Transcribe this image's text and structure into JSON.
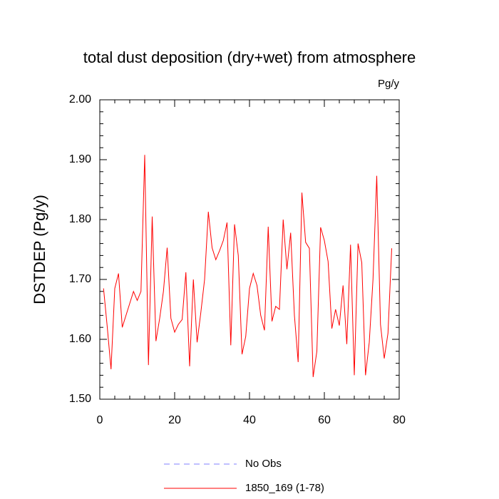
{
  "chart_data": {
    "type": "line",
    "title": "total dust deposition (dry+wet) from atmosphere",
    "units_label": "Pg/y",
    "y_label": "DSTDEP  (Pg/y)",
    "x": [
      1,
      2,
      3,
      4,
      5,
      6,
      7,
      8,
      9,
      10,
      11,
      12,
      13,
      14,
      15,
      16,
      17,
      18,
      19,
      20,
      21,
      22,
      23,
      24,
      25,
      26,
      27,
      28,
      29,
      30,
      31,
      32,
      33,
      34,
      35,
      36,
      37,
      38,
      39,
      40,
      41,
      42,
      43,
      44,
      45,
      46,
      47,
      48,
      49,
      50,
      51,
      52,
      53,
      54,
      55,
      56,
      57,
      58,
      59,
      60,
      61,
      62,
      63,
      64,
      65,
      66,
      67,
      68,
      69,
      70,
      71,
      72,
      73,
      74,
      75,
      76,
      77,
      78
    ],
    "series": [
      {
        "name": "No Obs",
        "color": "#7f7fff",
        "dash": true,
        "values": [
          null,
          null,
          null,
          null,
          null,
          null,
          null,
          null,
          null,
          null,
          null,
          null,
          null,
          null,
          null,
          null,
          null,
          null,
          null,
          null,
          null,
          null,
          null,
          null,
          null,
          null,
          null,
          null,
          null,
          null,
          null,
          null,
          null,
          null,
          null,
          null,
          null,
          null,
          null,
          null,
          null,
          null,
          null,
          null,
          null,
          null,
          null,
          null,
          null,
          null,
          null,
          null,
          null,
          null,
          null,
          null,
          null,
          null,
          null,
          null,
          null,
          null,
          null,
          null,
          null,
          null,
          null,
          null,
          null,
          null,
          null,
          null,
          null,
          null,
          null,
          null,
          null,
          null
        ]
      },
      {
        "name": "1850_169 (1-78)",
        "color": "#ff0000",
        "dash": false,
        "values": [
          1.685,
          1.62,
          1.55,
          1.685,
          1.71,
          1.62,
          1.64,
          1.66,
          1.68,
          1.665,
          1.68,
          1.908,
          1.557,
          1.805,
          1.597,
          1.635,
          1.68,
          1.753,
          1.635,
          1.612,
          1.625,
          1.633,
          1.712,
          1.555,
          1.7,
          1.595,
          1.645,
          1.7,
          1.813,
          1.753,
          1.733,
          1.748,
          1.765,
          1.795,
          1.59,
          1.792,
          1.74,
          1.575,
          1.605,
          1.685,
          1.71,
          1.69,
          1.64,
          1.615,
          1.788,
          1.63,
          1.655,
          1.65,
          1.8,
          1.717,
          1.778,
          1.64,
          1.562,
          1.845,
          1.762,
          1.752,
          1.537,
          1.58,
          1.787,
          1.765,
          1.73,
          1.618,
          1.65,
          1.623,
          1.69,
          1.592,
          1.758,
          1.54,
          1.76,
          1.728,
          1.54,
          1.595,
          1.7,
          1.873,
          1.625,
          1.568,
          1.61,
          1.752
        ]
      }
    ],
    "xlim": [
      0,
      80
    ],
    "xticks": [
      0,
      20,
      40,
      60,
      80
    ],
    "ylim": [
      1.5,
      2.0
    ],
    "yticks": [
      {
        "value": 1.5,
        "label": "1.50"
      },
      {
        "value": 1.6,
        "label": "1.60"
      },
      {
        "value": 1.7,
        "label": "1.70"
      },
      {
        "value": 1.8,
        "label": "1.80"
      },
      {
        "value": 1.9,
        "label": "1.90"
      },
      {
        "value": 2.0,
        "label": "2.00"
      }
    ]
  }
}
